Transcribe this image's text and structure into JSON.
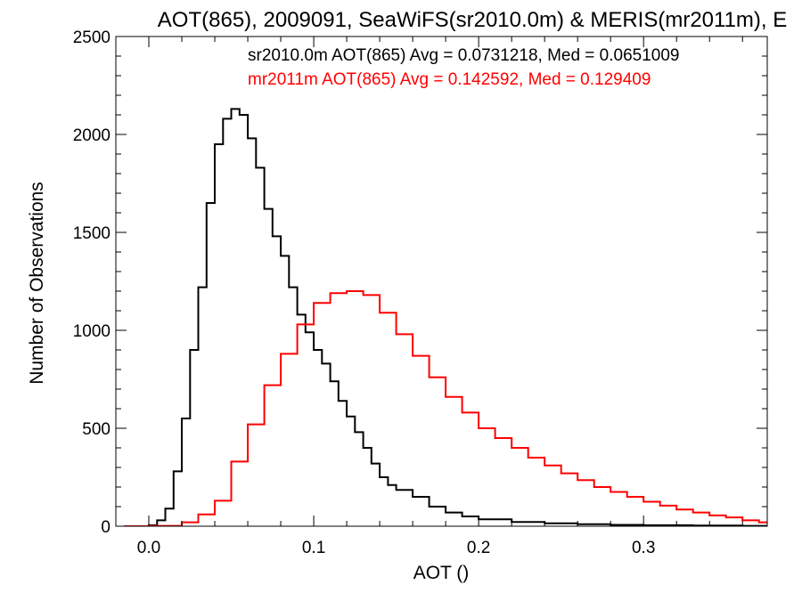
{
  "chart_data": {
    "type": "line",
    "step": true,
    "title": "AOT(865), 2009091, SeaWiFS(sr2010.0m) & MERIS(mr2011m), E",
    "xlabel": "AOT ()",
    "ylabel": "Number of Observations",
    "xlim": [
      -0.02,
      0.375
    ],
    "ylim": [
      0,
      2500
    ],
    "xticks": [
      "0.0",
      "0.1",
      "0.2",
      "0.3"
    ],
    "xtick_values": [
      0.0,
      0.1,
      0.2,
      0.3
    ],
    "yticks": [
      "0",
      "500",
      "1000",
      "1500",
      "2000",
      "2500"
    ],
    "ytick_values": [
      0,
      500,
      1000,
      1500,
      2000,
      2500
    ],
    "grid": false,
    "legend_position": "top-right",
    "series": [
      {
        "name": "sr2010.0m AOT(865) Avg = 0.0731218, Med = 0.0651009",
        "color": "#000000",
        "x": [
          -0.015,
          0.0,
          0.005,
          0.01,
          0.015,
          0.02,
          0.025,
          0.03,
          0.035,
          0.04,
          0.045,
          0.05,
          0.055,
          0.06,
          0.065,
          0.07,
          0.075,
          0.08,
          0.085,
          0.09,
          0.095,
          0.1,
          0.105,
          0.11,
          0.115,
          0.12,
          0.125,
          0.13,
          0.135,
          0.14,
          0.145,
          0.15,
          0.16,
          0.17,
          0.18,
          0.19,
          0.2,
          0.22,
          0.24,
          0.26,
          0.28,
          0.3,
          0.33,
          0.36,
          0.375
        ],
        "y": [
          0,
          5,
          30,
          90,
          280,
          550,
          900,
          1220,
          1650,
          1950,
          2080,
          2130,
          2100,
          1980,
          1830,
          1620,
          1480,
          1380,
          1220,
          1080,
          990,
          900,
          830,
          740,
          640,
          560,
          480,
          400,
          320,
          250,
          210,
          185,
          150,
          100,
          70,
          50,
          35,
          22,
          15,
          10,
          7,
          5,
          3,
          2,
          1
        ]
      },
      {
        "name": "mr2011m AOT(865) Avg = 0.142592, Med = 0.129409",
        "color": "#ff0000",
        "x": [
          -0.015,
          0.0,
          0.02,
          0.03,
          0.04,
          0.05,
          0.06,
          0.07,
          0.08,
          0.09,
          0.1,
          0.11,
          0.12,
          0.13,
          0.14,
          0.15,
          0.16,
          0.17,
          0.18,
          0.19,
          0.2,
          0.21,
          0.22,
          0.23,
          0.24,
          0.25,
          0.26,
          0.27,
          0.28,
          0.29,
          0.3,
          0.31,
          0.32,
          0.33,
          0.34,
          0.35,
          0.36,
          0.37,
          0.375
        ],
        "y": [
          0,
          2,
          20,
          60,
          130,
          330,
          520,
          720,
          880,
          1030,
          1140,
          1190,
          1200,
          1180,
          1090,
          980,
          870,
          760,
          660,
          580,
          500,
          450,
          400,
          350,
          310,
          270,
          235,
          200,
          175,
          150,
          125,
          105,
          85,
          70,
          55,
          45,
          30,
          20,
          15
        ]
      }
    ]
  }
}
